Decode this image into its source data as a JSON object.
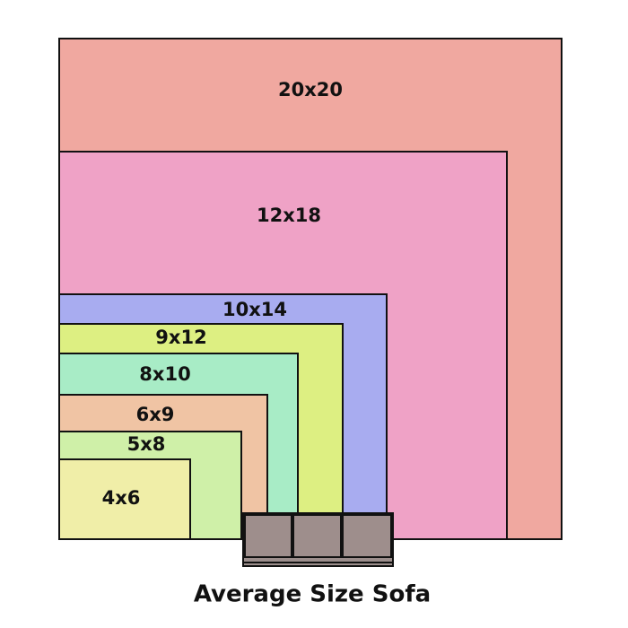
{
  "nodes": [
    {
      "label": "20x20"
    },
    {
      "label": "12x18"
    },
    {
      "label": "10x14"
    },
    {
      "label": "9x12"
    },
    {
      "label": "8x10"
    },
    {
      "label": "6x9"
    },
    {
      "label": "5x8"
    },
    {
      "label": "4x6"
    }
  ],
  "caption": "Average Size Sofa"
}
